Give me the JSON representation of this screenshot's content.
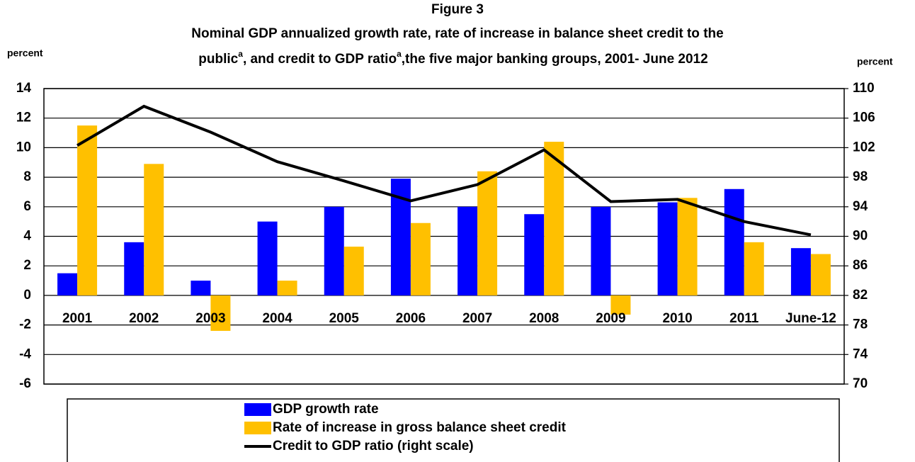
{
  "chart_data": {
    "type": "bar_line",
    "title": "Figure 3",
    "subtitle": [
      "Nominal GDP annualized growth rate, rate of increase in balance sheet credit to the",
      "public",
      "a",
      ", and credit to GDP ratio",
      "a",
      ",the five major banking groups, 2001- June 2012"
    ],
    "ylabel": "percent",
    "y2label": "percent",
    "categories": [
      "2001",
      "2002",
      "2003",
      "2004",
      "2005",
      "2006",
      "2007",
      "2008",
      "2009",
      "2010",
      "2011",
      "June-12"
    ],
    "series": [
      {
        "name": "GDP growth rate",
        "color": "#0000ff",
        "type": "bar",
        "values": [
          1.5,
          3.6,
          1.0,
          5.0,
          6.0,
          7.9,
          6.0,
          5.5,
          6.0,
          6.3,
          7.2,
          3.2
        ]
      },
      {
        "name": "Rate of increase in gross balance sheet credit",
        "color": "#ffc000",
        "type": "bar",
        "values": [
          11.5,
          8.9,
          -2.4,
          1.0,
          3.3,
          4.9,
          8.4,
          10.4,
          -1.3,
          6.6,
          3.6,
          2.8
        ]
      },
      {
        "name": "Credit to GDP ratio (right scale)",
        "color": "#000000",
        "type": "line",
        "axis": "y2",
        "values": [
          102.3,
          107.6,
          104.1,
          100.1,
          97.5,
          94.8,
          97.0,
          101.7,
          94.7,
          95.0,
          92.0,
          90.2
        ]
      }
    ],
    "ylim": [
      -6,
      14
    ],
    "yticks": [
      -6,
      -4,
      -2,
      0,
      2,
      4,
      6,
      8,
      10,
      12,
      14
    ],
    "y2lim": [
      70,
      110
    ],
    "y2ticks": [
      70,
      74,
      78,
      82,
      86,
      90,
      94,
      98,
      102,
      106,
      110
    ],
    "grid": true
  }
}
